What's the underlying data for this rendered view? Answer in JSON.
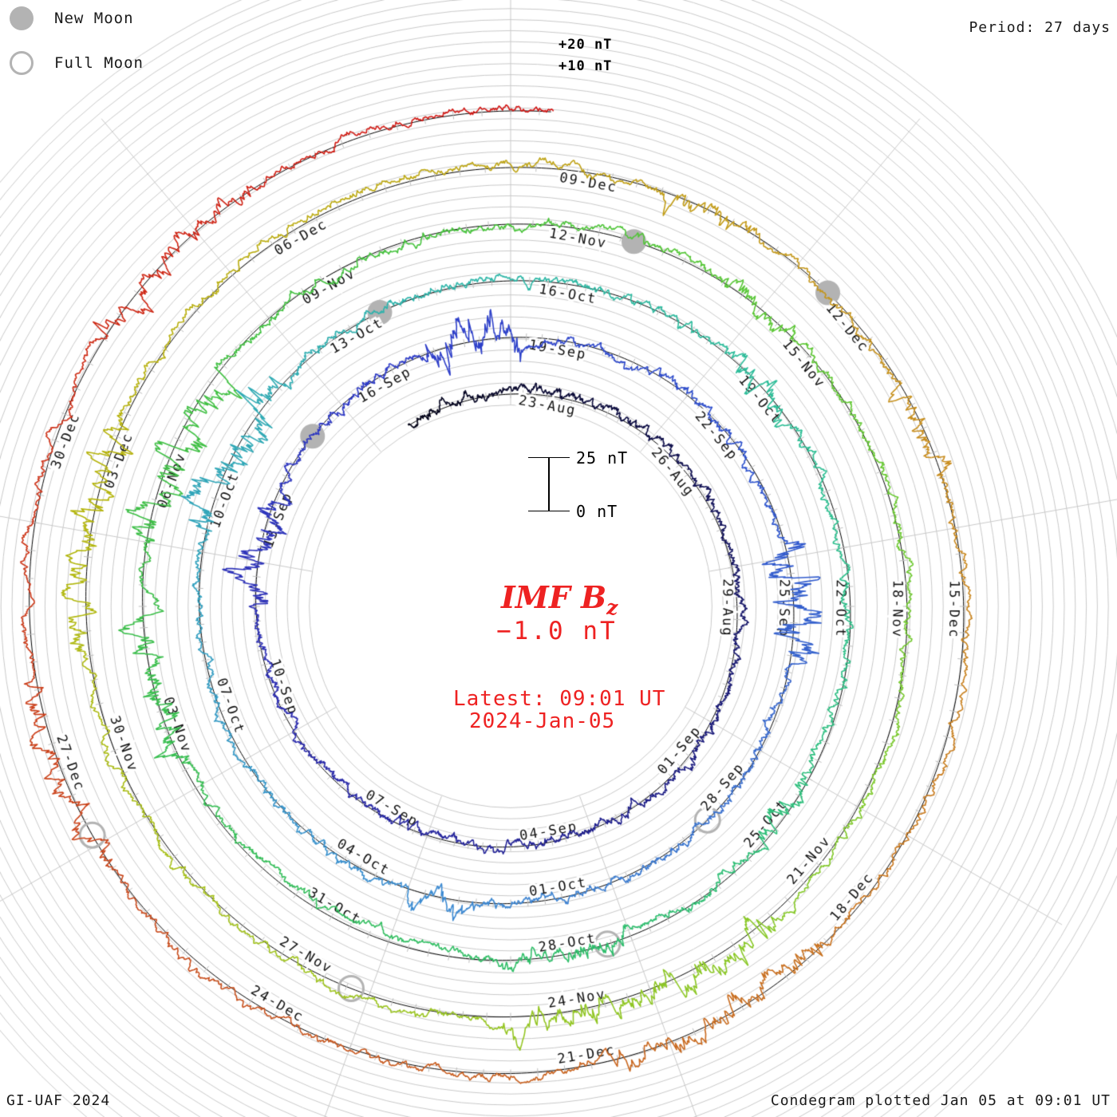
{
  "legend": {
    "new_moon_label": "New Moon",
    "full_moon_label": "Full Moon"
  },
  "header": {
    "period_label": "Period: 27 days"
  },
  "footer": {
    "credit": "GI-UAF 2024",
    "plotted": "Condegram plotted Jan 05 at 09:01 UT"
  },
  "radial_scale": {
    "plus20": "+20 nT",
    "plus10": "+10 nT"
  },
  "scalebar": {
    "top_label": "25 nT",
    "bottom_label": "0 nT"
  },
  "center": {
    "title_main": "IMF B",
    "title_sub": "z",
    "latest_value": "−1.0 nT",
    "latest_line1": "Latest: 09:01 UT",
    "latest_line2": "2024-Jan-05"
  },
  "colors": {
    "grid": "#c9c9c9",
    "tick": "#bdbdbd",
    "baseline": "#000000",
    "moon": "#b3b3b3",
    "annotation_red": "#ee2222",
    "label_text": "#111111"
  },
  "chart_data": {
    "type": "polar_spiral_condegram",
    "parameter": "IMF Bz",
    "units": "nT",
    "rotation_period_days": 27,
    "grid_division_nT": 5,
    "amplitude_reference_nT": 25,
    "latest_value_nT": -1.0,
    "latest_time": "2024-Jan-05 09:01 UT",
    "start_day_offset": -2.2,
    "end_day_offset": 135.38,
    "date_labels": [
      {
        "date": "23-Aug",
        "d": 0
      },
      {
        "date": "26-Aug",
        "d": 3
      },
      {
        "date": "29-Aug",
        "d": 6
      },
      {
        "date": "01-Sep",
        "d": 9
      },
      {
        "date": "04-Sep",
        "d": 12
      },
      {
        "date": "07-Sep",
        "d": 15
      },
      {
        "date": "10-Sep",
        "d": 18
      },
      {
        "date": "13-Sep",
        "d": 21
      },
      {
        "date": "16-Sep",
        "d": 24
      },
      {
        "date": "19-Sep",
        "d": 27
      },
      {
        "date": "22-Sep",
        "d": 30
      },
      {
        "date": "25-Sep",
        "d": 33
      },
      {
        "date": "28-Sep",
        "d": 36
      },
      {
        "date": "01-Oct",
        "d": 39
      },
      {
        "date": "04-Oct",
        "d": 42
      },
      {
        "date": "07-Oct",
        "d": 45
      },
      {
        "date": "10-Oct",
        "d": 48
      },
      {
        "date": "13-Oct",
        "d": 51
      },
      {
        "date": "16-Oct",
        "d": 54
      },
      {
        "date": "19-Oct",
        "d": 57
      },
      {
        "date": "22-Oct",
        "d": 60
      },
      {
        "date": "25-Oct",
        "d": 63
      },
      {
        "date": "28-Oct",
        "d": 66
      },
      {
        "date": "31-Oct",
        "d": 69
      },
      {
        "date": "03-Nov",
        "d": 72
      },
      {
        "date": "06-Nov",
        "d": 75
      },
      {
        "date": "09-Nov",
        "d": 78
      },
      {
        "date": "12-Nov",
        "d": 81
      },
      {
        "date": "15-Nov",
        "d": 84
      },
      {
        "date": "18-Nov",
        "d": 87
      },
      {
        "date": "21-Nov",
        "d": 90
      },
      {
        "date": "24-Nov",
        "d": 93
      },
      {
        "date": "27-Nov",
        "d": 96
      },
      {
        "date": "30-Nov",
        "d": 99
      },
      {
        "date": "03-Dec",
        "d": 102
      },
      {
        "date": "06-Dec",
        "d": 105
      },
      {
        "date": "09-Dec",
        "d": 108
      },
      {
        "date": "12-Dec",
        "d": 111
      },
      {
        "date": "15-Dec",
        "d": 114
      },
      {
        "date": "18-Dec",
        "d": 117
      },
      {
        "date": "21-Dec",
        "d": 120
      },
      {
        "date": "24-Dec",
        "d": 123
      },
      {
        "date": "27-Dec",
        "d": 126
      },
      {
        "date": "30-Dec",
        "d": 129
      }
    ],
    "moons": [
      {
        "type": "new",
        "date": "2023-Sep-15",
        "d": 23.3
      },
      {
        "type": "new",
        "date": "2023-Oct-14",
        "d": 52.2
      },
      {
        "type": "new",
        "date": "2023-Nov-13",
        "d": 82.4
      },
      {
        "type": "new",
        "date": "2023-Dec-12",
        "d": 111.4
      },
      {
        "type": "full",
        "date": "2023-Sep-29",
        "d": 37.3
      },
      {
        "type": "full",
        "date": "2023-Oct-28",
        "d": 66.3
      },
      {
        "type": "full",
        "date": "2023-Nov-27",
        "d": 96.2
      },
      {
        "type": "full",
        "date": "2023-Dec-27",
        "d": 126.1
      }
    ],
    "high_activity_periods_days_from_aug23": [
      [
        20.3,
        22.2,
        3.2
      ],
      [
        25.6,
        27.2,
        3.4
      ],
      [
        32.8,
        34.6,
        4.6
      ],
      [
        41.0,
        42.0,
        2.2
      ],
      [
        48.3,
        50.6,
        3.6
      ],
      [
        57.0,
        58.2,
        2.4
      ],
      [
        63.0,
        64.0,
        2.0
      ],
      [
        66.0,
        67.6,
        2.4
      ],
      [
        72.3,
        74.2,
        3.2
      ],
      [
        75.0,
        77.2,
        3.4
      ],
      [
        83.5,
        84.5,
        2.2
      ],
      [
        91.5,
        94.6,
        3.2
      ],
      [
        100.8,
        103.2,
        3.2
      ],
      [
        109.5,
        110.5,
        2.4
      ],
      [
        112.5,
        113.5,
        2.6
      ],
      [
        118.3,
        120.6,
        2.8
      ],
      [
        125.8,
        127.6,
        2.6
      ],
      [
        130.8,
        132.6,
        2.8
      ]
    ],
    "colormap_time_stops": [
      [
        0.0,
        "#000014"
      ],
      [
        0.05,
        "#14145a"
      ],
      [
        0.1,
        "#1e1e8c"
      ],
      [
        0.15,
        "#2e2eb0"
      ],
      [
        0.2,
        "#2e3cc8"
      ],
      [
        0.25,
        "#2e55cd"
      ],
      [
        0.28,
        "#3c6ecd"
      ],
      [
        0.32,
        "#3c8cd2"
      ],
      [
        0.36,
        "#32a0be"
      ],
      [
        0.4,
        "#2db4aa"
      ],
      [
        0.44,
        "#2dbe96"
      ],
      [
        0.48,
        "#2dbe78"
      ],
      [
        0.52,
        "#32be5f"
      ],
      [
        0.56,
        "#3cbe46"
      ],
      [
        0.6,
        "#46c33c"
      ],
      [
        0.64,
        "#64c832"
      ],
      [
        0.68,
        "#87c828"
      ],
      [
        0.72,
        "#a0c31e"
      ],
      [
        0.76,
        "#b4b40a"
      ],
      [
        0.8,
        "#bea514"
      ],
      [
        0.84,
        "#c88c1e"
      ],
      [
        0.88,
        "#c86e1e"
      ],
      [
        0.92,
        "#c8501e"
      ],
      [
        0.96,
        "#cd2d14"
      ],
      [
        1.0,
        "#d21414"
      ]
    ]
  }
}
